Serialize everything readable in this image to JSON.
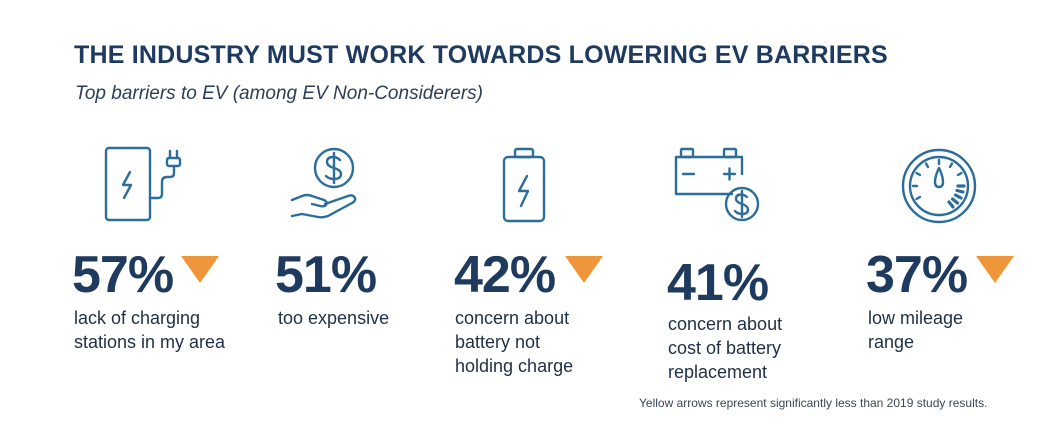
{
  "title": "THE INDUSTRY MUST WORK TOWARDS LOWERING EV BARRIERS",
  "subtitle": "Top barriers to EV (among EV Non-Considerers)",
  "colors": {
    "navy": "#1f3a5f",
    "icon_stroke": "#2c6e9b",
    "arrow": "#f0963a"
  },
  "barriers": [
    {
      "value_label": "57%",
      "label": "lack of charging\nstations in my area",
      "icon": "charging-station-icon",
      "decreased": true
    },
    {
      "value_label": "51%",
      "label": "too expensive",
      "icon": "money-in-hand-icon",
      "decreased": false
    },
    {
      "value_label": "42%",
      "label": "concern about\nbattery not\nholding charge",
      "icon": "battery-icon",
      "decreased": true
    },
    {
      "value_label": "41%",
      "label": "concern about\ncost of battery\nreplacement",
      "icon": "car-battery-cost-icon",
      "decreased": false
    },
    {
      "value_label": "37%",
      "label": "low mileage\nrange",
      "icon": "fuel-gauge-icon",
      "decreased": true
    }
  ],
  "chart_data": {
    "type": "table",
    "title": "THE INDUSTRY MUST WORK TOWARDS LOWERING EV BARRIERS",
    "subtitle": "Top barriers to EV (among EV Non-Considerers)",
    "categories": [
      "lack of charging stations in my area",
      "too expensive",
      "concern about battery not holding charge",
      "concern about cost of battery replacement",
      "low mileage range"
    ],
    "values": [
      57,
      51,
      42,
      41,
      37
    ],
    "significantly_less_than_2019": [
      true,
      false,
      true,
      false,
      true
    ]
  },
  "footnote": "Yellow arrows represent significantly less than 2019 study results."
}
